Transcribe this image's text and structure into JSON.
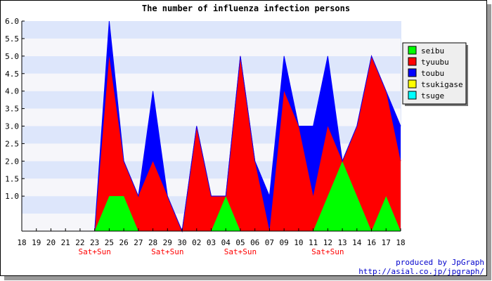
{
  "chart_data": {
    "type": "area",
    "stacked": true,
    "title": "The number of influenza infection persons",
    "x": [
      "18",
      "19",
      "20",
      "21",
      "22",
      "23",
      "25",
      "26",
      "27",
      "28",
      "29",
      "30",
      "02",
      "03",
      "04",
      "05",
      "06",
      "07",
      "09",
      "10",
      "11",
      "12",
      "13",
      "14",
      "16",
      "17",
      "18"
    ],
    "x_sublabels": [
      "",
      "",
      "",
      "",
      "",
      "Sat+Sun",
      "",
      "",
      "",
      "",
      "Sat+Sun",
      "",
      "",
      "",
      "",
      "Sat+Sun",
      "",
      "",
      "",
      "",
      "",
      "Sat+Sun",
      "",
      "",
      "",
      "",
      ""
    ],
    "y_ticks": [
      "1.0",
      "1.5",
      "2.0",
      "2.5",
      "3.0",
      "3.5",
      "4.0",
      "4.5",
      "5.0",
      "5.5",
      "6.0"
    ],
    "ylim": [
      0,
      6
    ],
    "grid": true,
    "legend_position": "right",
    "series": [
      {
        "name": "seibu",
        "color": "#00ff00",
        "values": [
          0,
          0,
          0,
          0,
          0,
          0,
          1,
          1,
          0,
          0,
          0,
          0,
          0,
          0,
          1,
          0,
          0,
          0,
          0,
          0,
          0,
          1,
          2,
          1,
          0,
          1,
          0
        ]
      },
      {
        "name": "tyuubu",
        "color": "#ff0000",
        "values": [
          0,
          0,
          0,
          0,
          0,
          0,
          4,
          1,
          1,
          2,
          1,
          0,
          3,
          1,
          0,
          5,
          2,
          0,
          4,
          3,
          1,
          2,
          0,
          2,
          5,
          3,
          2
        ]
      },
      {
        "name": "toubu",
        "color": "#0000ff",
        "values": [
          0,
          0,
          0,
          0,
          0,
          0,
          1,
          0,
          0,
          2,
          0,
          0,
          0,
          0,
          0,
          0,
          0,
          1,
          1,
          0,
          2,
          2,
          0,
          0,
          0,
          0,
          1
        ]
      },
      {
        "name": "tsukigase",
        "color": "#ffff00",
        "values": [
          0,
          0,
          0,
          0,
          0,
          0,
          0,
          0,
          0,
          0,
          0,
          0,
          0,
          0,
          0,
          0,
          0,
          0,
          0,
          0,
          0,
          0,
          0,
          0,
          0,
          0,
          0
        ]
      },
      {
        "name": "tsuge",
        "color": "#00ffff",
        "values": [
          0,
          0,
          0,
          0,
          0,
          0,
          0,
          0,
          0,
          0,
          0,
          0,
          0,
          0,
          0,
          0,
          0,
          0,
          0,
          0,
          0,
          0,
          0,
          0,
          0,
          0,
          0
        ]
      }
    ],
    "credit": [
      "produced by JpGraph",
      "http://asial.co.jp/jpgraph/"
    ],
    "sublabel_color": "#ff0000",
    "credit_color": "#0000cc"
  }
}
